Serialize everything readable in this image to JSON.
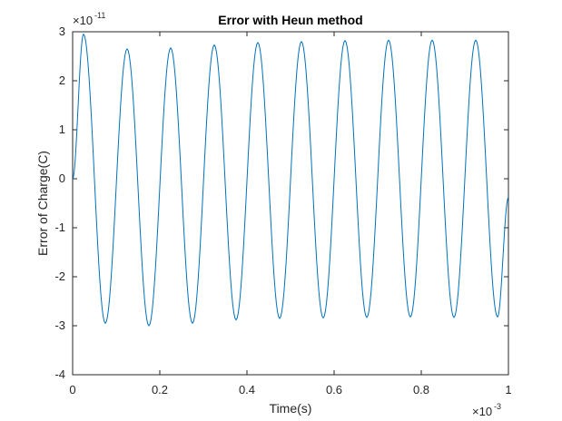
{
  "chart_data": {
    "type": "line",
    "title": "Error with Heun method",
    "xlabel": "Time(s)",
    "ylabel": "Error of Charge(C)",
    "xlim": [
      0,
      1
    ],
    "ylim": [
      -4,
      3
    ],
    "x_ticks": [
      "0",
      "0.2",
      "0.4",
      "0.6",
      "0.8",
      "1"
    ],
    "y_ticks": [
      "-4",
      "-3",
      "-2",
      "-1",
      "0",
      "1",
      "2",
      "3"
    ],
    "x_multiplier": {
      "base": "×10",
      "exponent": "-3"
    },
    "y_multiplier": {
      "base": "×10",
      "exponent": "-11"
    },
    "grid": false,
    "line_color": "#0072BD",
    "series": [
      {
        "x": [
          0,
          0.025,
          0.075,
          0.125,
          0.175,
          0.225,
          0.275,
          0.325,
          0.375,
          0.425,
          0.475,
          0.525,
          0.575,
          0.625,
          0.675,
          0.725,
          0.775,
          0.825,
          0.875,
          0.925,
          0.975,
          1.0
        ],
        "y": [
          0.0,
          2.95,
          -2.95,
          2.65,
          -3.0,
          2.67,
          -2.95,
          2.73,
          -2.88,
          2.78,
          -2.85,
          2.8,
          -2.84,
          2.82,
          -2.83,
          2.83,
          -2.82,
          2.83,
          -2.83,
          2.83,
          -2.82,
          -0.38
        ]
      }
    ]
  }
}
